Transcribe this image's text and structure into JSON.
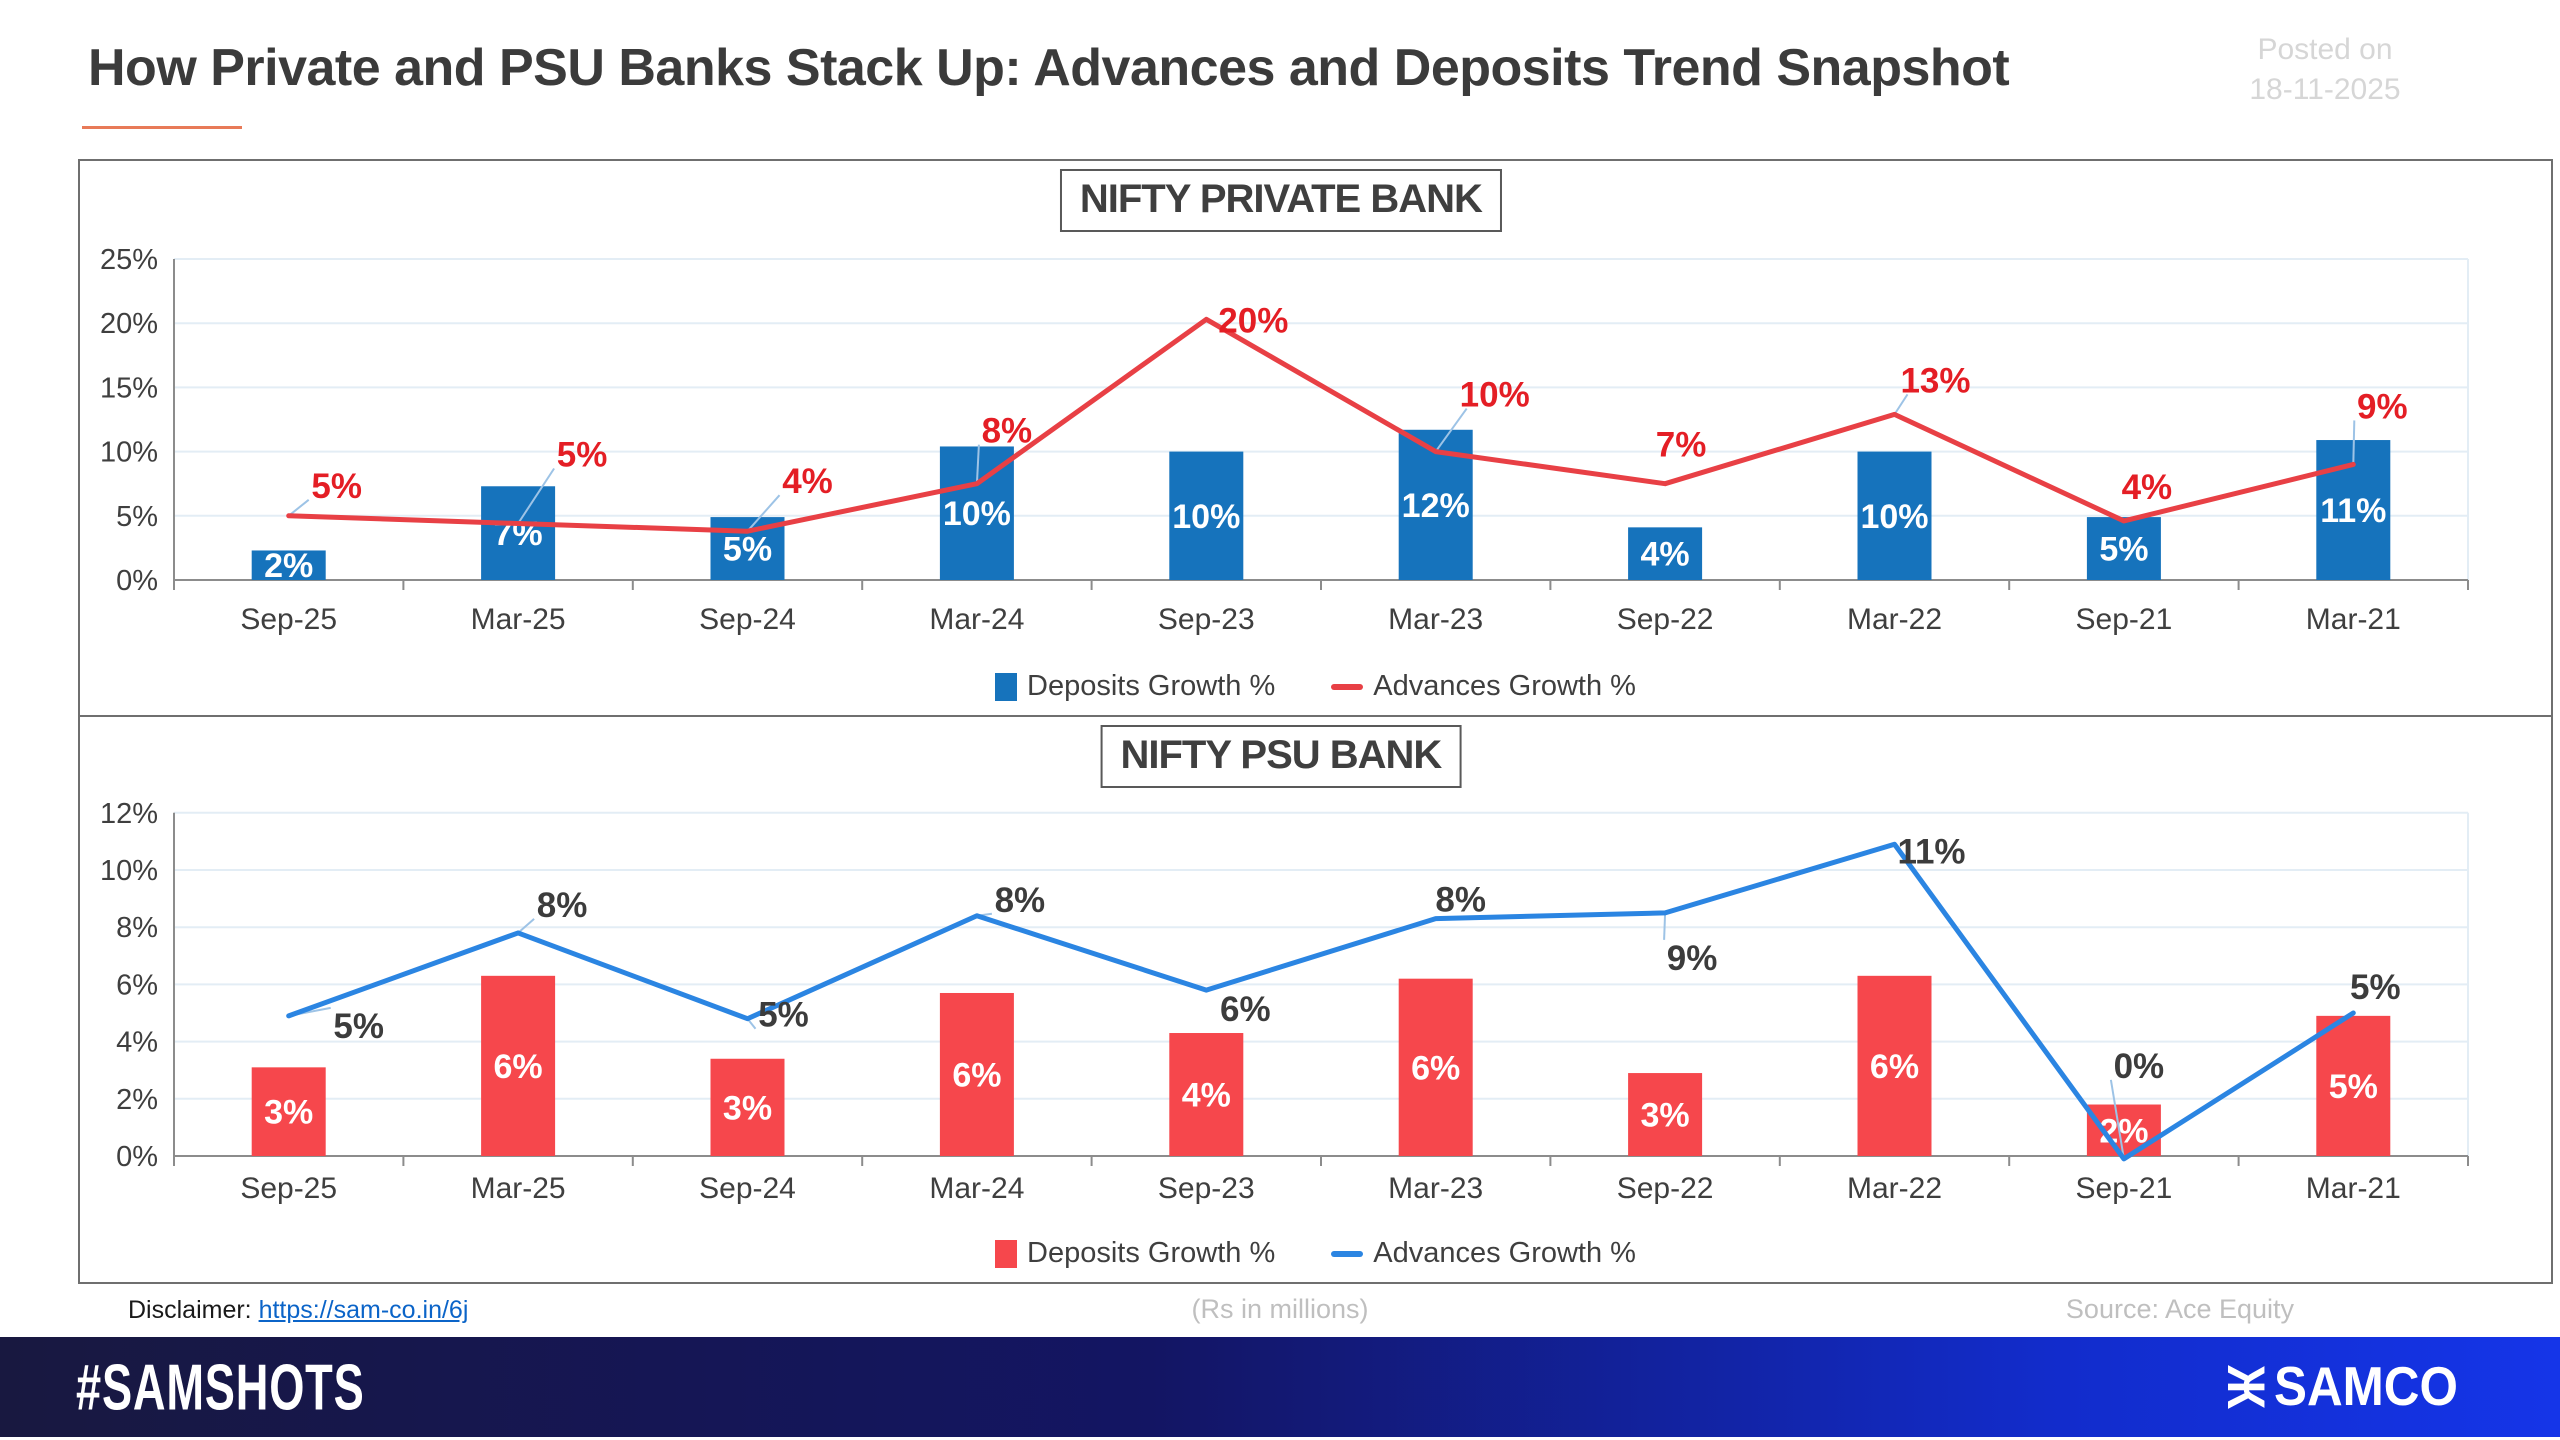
{
  "header": {
    "title": "How Private and PSU Banks Stack Up: Advances and Deposits Trend Snapshot",
    "posted_on": "Posted on",
    "posted_date": "18-11-2025"
  },
  "chart_data": [
    {
      "type": "bar+line",
      "title": "NIFTY PRIVATE BANK",
      "categories": [
        "Sep-25",
        "Mar-25",
        "Sep-24",
        "Mar-24",
        "Sep-23",
        "Mar-23",
        "Sep-22",
        "Mar-22",
        "Sep-21",
        "Mar-21"
      ],
      "ylim": [
        0,
        25
      ],
      "ytick_step": 5,
      "ytick_labels": [
        "0%",
        "5%",
        "10%",
        "15%",
        "20%",
        "25%"
      ],
      "grid": true,
      "legend_position": "bottom",
      "series": [
        {
          "name": "Deposits Growth %",
          "type": "bar",
          "color": "#1673BC",
          "label_color": "#FFFFFF",
          "values": [
            2,
            7,
            5,
            10,
            10,
            12,
            4,
            10,
            5,
            11
          ],
          "data_labels": [
            "2%",
            "7%",
            "5%",
            "10%",
            "10%",
            "12%",
            "4%",
            "10%",
            "5%",
            "11%"
          ],
          "plot_values": [
            2.3,
            7.3,
            4.9,
            10.4,
            10.0,
            11.7,
            4.1,
            10.0,
            4.9,
            10.9
          ]
        },
        {
          "name": "Advances Growth %",
          "type": "line",
          "color": "#E84045",
          "label_color": "#E41E25",
          "values": [
            5,
            5,
            4,
            8,
            20,
            10,
            7,
            13,
            4,
            9
          ],
          "data_labels": [
            "5%",
            "5%",
            "4%",
            "8%",
            "20%",
            "10%",
            "7%",
            "13%",
            "4%",
            "9%"
          ],
          "plot_values": [
            5.0,
            4.4,
            3.8,
            7.5,
            20.3,
            10.0,
            7.5,
            12.9,
            4.6,
            9.0
          ],
          "label_offsets": [
            [
              48,
              -30
            ],
            [
              64,
              -69
            ],
            [
              60,
              -50
            ],
            [
              30,
              -53
            ],
            [
              47,
              1
            ],
            [
              59,
              -57
            ],
            [
              16,
              -39
            ],
            [
              41,
              -34
            ],
            [
              23,
              -34
            ],
            [
              29,
              -58
            ]
          ],
          "leader_lines": [
            true,
            true,
            true,
            true,
            false,
            true,
            false,
            true,
            false,
            true
          ]
        }
      ]
    },
    {
      "type": "bar+line",
      "title": "NIFTY PSU BANK",
      "categories": [
        "Sep-25",
        "Mar-25",
        "Sep-24",
        "Mar-24",
        "Sep-23",
        "Mar-23",
        "Sep-22",
        "Mar-22",
        "Sep-21",
        "Mar-21"
      ],
      "ylim": [
        0,
        12
      ],
      "ytick_step": 2,
      "ytick_labels": [
        "0%",
        "2%",
        "4%",
        "6%",
        "8%",
        "10%",
        "12%"
      ],
      "grid": true,
      "legend_position": "bottom",
      "series": [
        {
          "name": "Deposits Growth %",
          "type": "bar",
          "color": "#F6474C",
          "label_color": "#FFFFFF",
          "values": [
            3,
            6,
            3,
            6,
            4,
            6,
            3,
            6,
            2,
            5
          ],
          "data_labels": [
            "3%",
            "6%",
            "3%",
            "6%",
            "4%",
            "6%",
            "3%",
            "6%",
            "2%",
            "5%"
          ],
          "plot_values": [
            3.1,
            6.3,
            3.4,
            5.7,
            4.3,
            6.2,
            2.9,
            6.3,
            1.8,
            4.9
          ]
        },
        {
          "name": "Advances Growth %",
          "type": "line",
          "color": "#2B85E2",
          "label_color": "#3C3C3C",
          "values": [
            5,
            8,
            5,
            8,
            6,
            8,
            9,
            11,
            0,
            5
          ],
          "data_labels": [
            "5%",
            "8%",
            "5%",
            "8%",
            "6%",
            "8%",
            "9%",
            "11%",
            "0%",
            "5%"
          ],
          "plot_values": [
            4.9,
            7.8,
            4.8,
            8.4,
            5.8,
            8.3,
            8.5,
            10.9,
            -0.1,
            5.0
          ],
          "label_offsets": [
            [
              70,
              10
            ],
            [
              44,
              -28
            ],
            [
              36,
              -4
            ],
            [
              43,
              -16
            ],
            [
              39,
              19
            ],
            [
              25,
              -19
            ],
            [
              27,
              45
            ],
            [
              37,
              7
            ],
            [
              15,
              -93
            ],
            [
              22,
              -26
            ]
          ],
          "leader_lines": [
            true,
            true,
            true,
            true,
            false,
            false,
            true,
            false,
            true,
            false
          ]
        }
      ]
    }
  ],
  "style": {
    "grid_color": "#E3EDF5",
    "axis_color": "#8C8C8C",
    "axis_text_color": "#3F3F3F",
    "leader_color": "#9DC3E6"
  },
  "footer": {
    "disclaimer_label": "Disclaimer:",
    "disclaimer_link": "https://sam-co.in/6j",
    "center_note": "(Rs in millions)",
    "source": "Source: Ace Equity"
  },
  "banner": {
    "hashtag": "#SAMSHOTS",
    "logo_glyph": "Ж",
    "brand": "SAMCO"
  }
}
